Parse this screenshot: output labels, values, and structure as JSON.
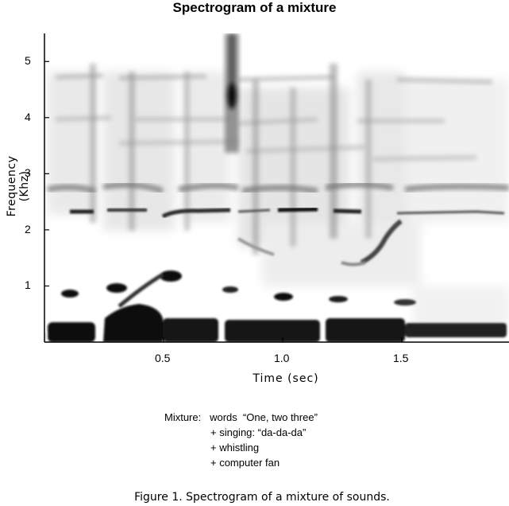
{
  "figure": {
    "title": "Spectrogram of a mixture",
    "caption": "Figure 1.  Spectrogram of a mixture of sounds."
  },
  "chart_data": {
    "type": "heatmap",
    "title": "Spectrogram of a mixture",
    "xlabel": "Time (sec)",
    "ylabel": "Frequency (Khz)",
    "xlim": [
      0,
      1.95
    ],
    "ylim": [
      0,
      5.5
    ],
    "x_ticks": [
      {
        "value": 0.5,
        "label": "0.5"
      },
      {
        "value": 1.0,
        "label": "1.0"
      },
      {
        "value": 1.5,
        "label": "1.5"
      }
    ],
    "y_ticks": [
      {
        "value": 1,
        "label": "1"
      },
      {
        "value": 2,
        "label": "2"
      },
      {
        "value": 3,
        "label": "3"
      },
      {
        "value": 4,
        "label": "4"
      },
      {
        "value": 5,
        "label": "5"
      }
    ],
    "grid": false,
    "colormap": "white-to-black"
  },
  "annotations": {
    "mixture_label": "Mixture:",
    "lines": [
      "words  “One, two three”",
      "+ singing: “da-da-da”",
      "+ whistling",
      "+ computer fan"
    ]
  },
  "colors": {
    "ink": "#000000",
    "background": "#ffffff"
  }
}
